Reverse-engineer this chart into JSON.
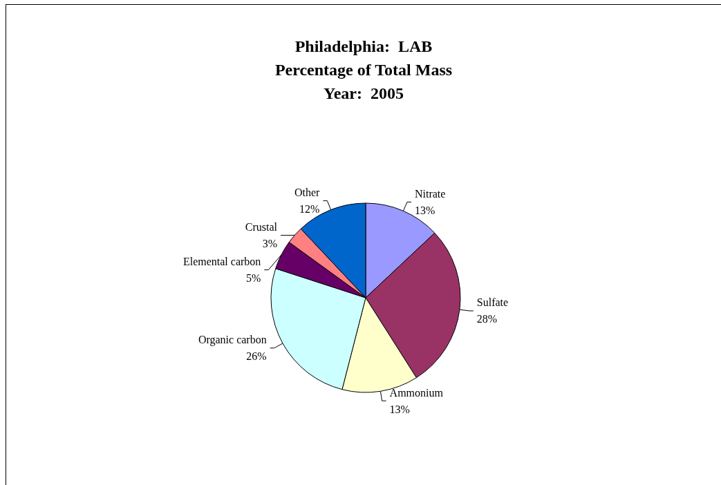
{
  "chart_data": {
    "type": "pie",
    "title": "Philadelphia:  LAB\nPercentage of Total Mass\nYear:  2005",
    "categories": [
      "Nitrate",
      "Sulfate",
      "Ammonium",
      "Organic carbon",
      "Elemental carbon",
      "Crustal",
      "Other"
    ],
    "values": [
      13,
      28,
      13,
      26,
      5,
      3,
      12
    ],
    "value_labels": [
      "13%",
      "28%",
      "13%",
      "26%",
      "5%",
      "3%",
      "12%"
    ],
    "colors": [
      "#9999ff",
      "#993366",
      "#ffffcc",
      "#ccffff",
      "#660066",
      "#ff8080",
      "#0066cc"
    ],
    "legend": false
  }
}
